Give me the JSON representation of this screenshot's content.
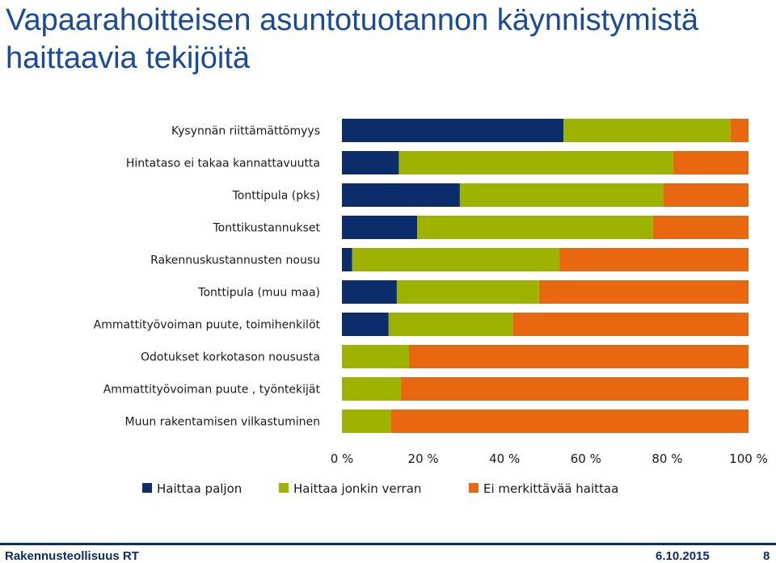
{
  "slide": {
    "title": "Vapaarahoitteisen asuntotuotannon käynnistymistä haittaavia tekijöitä",
    "footer_org": "Rakennusteollisuus RT",
    "footer_date": "6.10.2015",
    "footer_page": "8"
  },
  "chart_data": {
    "type": "bar",
    "orientation": "horizontal-stacked-100",
    "categories": [
      "Kysynnän riittämättömyys",
      "Hintataso ei takaa kannattavuutta",
      "Tonttipula (pks)",
      "Tonttikustannukset",
      "Rakennuskustannusten nousu",
      "Tonttipula (muu maa)",
      "Ammattityövoiman puute, toimihenkilöt",
      "Odotukset korkotason noususta",
      "Ammattityövoiman puute ,  työntekijät",
      "Muun rakentamisen vilkastuminen"
    ],
    "series": [
      {
        "name": "Haittaa paljon",
        "color": "#0b2d6b",
        "values": [
          54.5,
          14,
          29,
          18.5,
          2.5,
          13.5,
          11.5,
          0,
          0,
          0
        ]
      },
      {
        "name": "Haittaa jonkin verran",
        "color": "#9eb300",
        "values": [
          41,
          67.5,
          50,
          58,
          51,
          35,
          30.5,
          16.5,
          14.5,
          12
        ]
      },
      {
        "name": "Ei merkittävää haittaa",
        "color": "#e8670f",
        "values": [
          4.5,
          18.5,
          21,
          23.5,
          46.5,
          51.5,
          58,
          83.5,
          85.5,
          88
        ]
      }
    ],
    "x_ticks": [
      "0 %",
      "20 %",
      "40 %",
      "60 %",
      "80 %",
      "100 %"
    ],
    "xlim": [
      0,
      100
    ],
    "grid": false,
    "legend_position": "bottom"
  }
}
